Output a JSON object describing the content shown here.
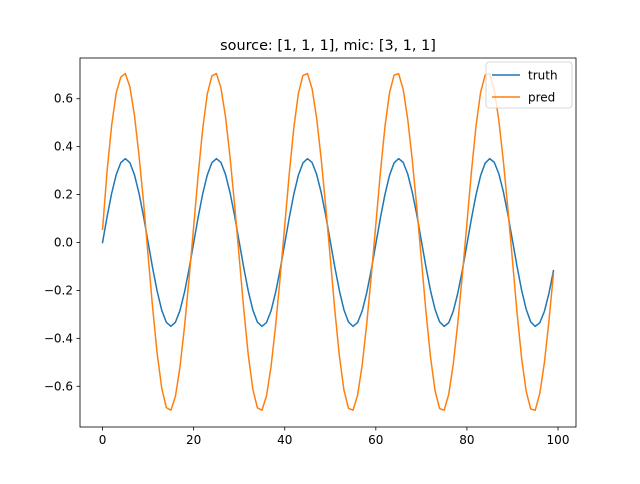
{
  "chart_data": {
    "type": "line",
    "title": "source: [1, 1, 1], mic: [3, 1, 1]",
    "xlabel": "",
    "ylabel": "",
    "xlim": [
      -4.95,
      103.95
    ],
    "ylim": [
      -0.77,
      0.77
    ],
    "grid": false,
    "legend_position": "upper-right",
    "x_ticks": [
      0,
      20,
      40,
      60,
      80,
      100
    ],
    "x_tick_labels": [
      "0",
      "20",
      "40",
      "60",
      "80",
      "100"
    ],
    "y_ticks": [
      -0.6,
      -0.4,
      -0.2,
      0.0,
      0.2,
      0.4,
      0.6
    ],
    "y_tick_labels": [
      "−0.6",
      "−0.4",
      "−0.2",
      "0.0",
      "0.2",
      "0.4",
      "0.6"
    ],
    "series": [
      {
        "name": "truth",
        "color": "#1f77b4",
        "x": [
          0,
          1,
          2,
          3,
          4,
          5,
          6,
          7,
          8,
          9,
          10,
          11,
          12,
          13,
          14,
          15,
          16,
          17,
          18,
          19,
          20,
          21,
          22,
          23,
          24,
          25,
          26,
          27,
          28,
          29,
          30,
          31,
          32,
          33,
          34,
          35,
          36,
          37,
          38,
          39,
          40,
          41,
          42,
          43,
          44,
          45,
          46,
          47,
          48,
          49,
          50,
          51,
          52,
          53,
          54,
          55,
          56,
          57,
          58,
          59,
          60,
          61,
          62,
          63,
          64,
          65,
          66,
          67,
          68,
          69,
          70,
          71,
          72,
          73,
          74,
          75,
          76,
          77,
          78,
          79,
          80,
          81,
          82,
          83,
          84,
          85,
          86,
          87,
          88,
          89,
          90,
          91,
          92,
          93,
          94,
          95,
          96,
          97,
          98,
          99
        ],
        "values": [
          0.0,
          0.108,
          0.205,
          0.283,
          0.333,
          0.35,
          0.333,
          0.283,
          0.206,
          0.109,
          0.001,
          -0.107,
          -0.204,
          -0.283,
          -0.333,
          -0.35,
          -0.333,
          -0.284,
          -0.207,
          -0.11,
          -0.002,
          0.106,
          0.204,
          0.282,
          0.333,
          0.35,
          0.334,
          0.284,
          0.207,
          0.111,
          0.003,
          -0.105,
          -0.203,
          -0.282,
          -0.332,
          -0.35,
          -0.334,
          -0.285,
          -0.208,
          -0.112,
          -0.004,
          0.104,
          0.202,
          0.281,
          0.332,
          0.35,
          0.334,
          0.285,
          0.209,
          0.113,
          0.005,
          -0.103,
          -0.201,
          -0.281,
          -0.332,
          -0.35,
          -0.334,
          -0.286,
          -0.21,
          -0.114,
          -0.006,
          0.102,
          0.2,
          0.28,
          0.332,
          0.35,
          0.335,
          0.286,
          0.21,
          0.115,
          0.007,
          -0.101,
          -0.2,
          -0.279,
          -0.331,
          -0.35,
          -0.335,
          -0.287,
          -0.211,
          -0.116,
          -0.008,
          0.1,
          0.199,
          0.279,
          0.331,
          0.35,
          0.335,
          0.287,
          0.212,
          0.117,
          0.009,
          -0.099,
          -0.198,
          -0.278,
          -0.331,
          -0.35,
          -0.335,
          -0.288,
          -0.213,
          -0.118
        ]
      },
      {
        "name": "pred",
        "color": "#ff7f0e",
        "x": [
          0,
          1,
          2,
          3,
          4,
          5,
          6,
          7,
          8,
          9,
          10,
          11,
          12,
          13,
          14,
          15,
          16,
          17,
          18,
          19,
          20,
          21,
          22,
          23,
          24,
          25,
          26,
          27,
          28,
          29,
          30,
          31,
          32,
          33,
          34,
          35,
          36,
          37,
          38,
          39,
          40,
          41,
          42,
          43,
          44,
          45,
          46,
          47,
          48,
          49,
          50,
          51,
          52,
          53,
          54,
          55,
          56,
          57,
          58,
          59,
          60,
          61,
          62,
          63,
          64,
          65,
          66,
          67,
          68,
          69,
          70,
          71,
          72,
          73,
          74,
          75,
          76,
          77,
          78,
          79,
          80,
          81,
          82,
          83,
          84,
          85,
          86,
          87,
          88,
          89,
          90,
          91,
          92,
          93,
          94,
          95,
          96,
          97,
          98,
          99
        ],
        "values": [
          0.055,
          0.299,
          0.489,
          0.624,
          0.69,
          0.705,
          0.65,
          0.531,
          0.365,
          0.169,
          -0.054,
          -0.273,
          -0.465,
          -0.608,
          -0.689,
          -0.7,
          -0.642,
          -0.52,
          -0.35,
          -0.15,
          0.065,
          0.283,
          0.476,
          0.62,
          0.695,
          0.705,
          0.645,
          0.525,
          0.355,
          0.155,
          -0.06,
          -0.278,
          -0.47,
          -0.613,
          -0.69,
          -0.7,
          -0.64,
          -0.517,
          -0.346,
          -0.145,
          0.07,
          0.288,
          0.48,
          0.622,
          0.697,
          0.705,
          0.642,
          0.52,
          0.35,
          0.15,
          -0.065,
          -0.283,
          -0.474,
          -0.616,
          -0.692,
          -0.7,
          -0.637,
          -0.512,
          -0.34,
          -0.14,
          0.075,
          0.292,
          0.483,
          0.624,
          0.698,
          0.705,
          0.64,
          0.515,
          0.345,
          0.145,
          -0.07,
          -0.287,
          -0.477,
          -0.618,
          -0.693,
          -0.7,
          -0.634,
          -0.508,
          -0.335,
          -0.135,
          0.08,
          0.297,
          0.487,
          0.626,
          0.699,
          0.705,
          0.637,
          0.51,
          0.34,
          0.14,
          -0.075,
          -0.292,
          -0.481,
          -0.62,
          -0.695,
          -0.7,
          -0.63,
          -0.503,
          -0.33,
          -0.13
        ]
      }
    ]
  }
}
